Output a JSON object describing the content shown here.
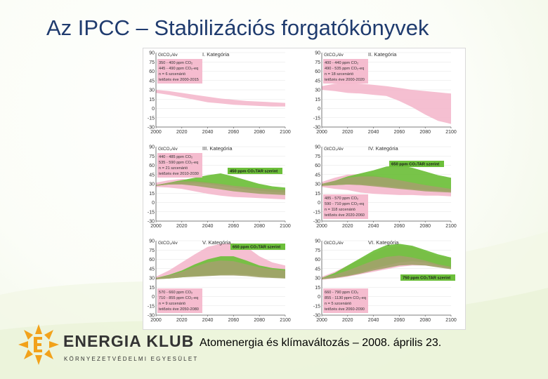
{
  "title": "Az IPCC – Stabilizációs forgatókönyvek",
  "footer": "Atomenergia és klímaváltozás – 2008. április 23.",
  "org": {
    "name": "ENERGIA KLUB",
    "subtitle": "KÖRNYEZETVÉDELMI EGYESÜLET"
  },
  "colors": {
    "title": "#1f3b6e",
    "pink": "#f4b8cc",
    "green": "#6cbf3a",
    "olive": "#a2a36a",
    "logo": "#f2a21b"
  },
  "chart_data": [
    {
      "type": "area",
      "title": "I. Kategória",
      "ylabel": "GtCO₂/év",
      "ylim": [
        -30,
        90
      ],
      "yticks": [
        90,
        75,
        60,
        45,
        30,
        15,
        0,
        -15,
        -30
      ],
      "xticks": [
        2000,
        2020,
        2040,
        2060,
        2080,
        2100
      ],
      "box": [
        "350 - 400 ppm CO₂",
        "445 - 490 ppm CO₂-eq",
        "n = 6 szcenárió",
        "tetőzés éve 2000-2015"
      ],
      "x": [
        2000,
        2010,
        2020,
        2030,
        2040,
        2050,
        2060,
        2070,
        2080,
        2090,
        2100
      ],
      "series": [
        {
          "values_upper": [
            30,
            28,
            25,
            22,
            19,
            16,
            14,
            12,
            11,
            10,
            9
          ],
          "values_lower": [
            25,
            22,
            18,
            14,
            10,
            8,
            6,
            5,
            4,
            3,
            3
          ]
        }
      ]
    },
    {
      "type": "area",
      "title": "II. Kategória",
      "ylabel": "GtCO₂/év",
      "ylim": [
        -30,
        90
      ],
      "yticks": [
        90,
        75,
        60,
        45,
        30,
        15,
        0,
        -15,
        -30
      ],
      "xticks": [
        2000,
        2020,
        2040,
        2060,
        2080,
        2100
      ],
      "box": [
        "400 - 440 ppm CO₂",
        "490 - 535 ppm CO₂-eq",
        "n = 18 szcenárió",
        "tetőzés éve 2000-2020"
      ],
      "x": [
        2000,
        2010,
        2020,
        2030,
        2040,
        2050,
        2060,
        2070,
        2080,
        2090,
        2100
      ],
      "series": [
        {
          "values_upper": [
            36,
            40,
            41,
            40,
            38,
            36,
            33,
            30,
            28,
            26,
            24
          ],
          "values_lower": [
            30,
            28,
            25,
            24,
            22,
            20,
            12,
            2,
            -10,
            -20,
            -25
          ]
        }
      ]
    },
    {
      "type": "area",
      "title": "III. Kategória",
      "ylabel": "GtCO₂/év",
      "ylim": [
        -30,
        90
      ],
      "yticks": [
        90,
        75,
        60,
        45,
        30,
        15,
        0,
        -15,
        -30
      ],
      "xticks": [
        2000,
        2020,
        2040,
        2060,
        2080,
        2100
      ],
      "box": [
        "440 - 485 ppm CO₂",
        "535 - 590 ppm CO₂-eq",
        "n = 21 szcenárió",
        "tetőzés éve 2010-2030"
      ],
      "annotation": "450 ppm CO₂TAR szerint",
      "x": [
        2000,
        2010,
        2020,
        2030,
        2040,
        2050,
        2060,
        2070,
        2080,
        2090,
        2100
      ],
      "series": [
        {
          "values_upper": [
            32,
            36,
            38,
            36,
            33,
            30,
            27,
            25,
            23,
            21,
            20
          ],
          "values_lower": [
            25,
            24,
            22,
            18,
            14,
            11,
            9,
            8,
            7,
            6,
            5
          ]
        },
        {
          "values_upper": [
            28,
            32,
            36,
            40,
            44,
            47,
            42,
            36,
            30,
            26,
            24
          ],
          "values_lower": [
            27,
            29,
            30,
            31,
            30,
            27,
            24,
            21,
            19,
            17,
            16
          ]
        },
        {
          "values_upper": [
            28,
            32,
            34,
            34,
            32,
            30,
            27,
            25,
            23,
            21,
            20
          ],
          "values_lower": [
            27,
            29,
            29,
            27,
            24,
            21,
            18,
            16,
            14,
            13,
            12
          ]
        }
      ]
    },
    {
      "type": "area",
      "title": "IV. Kategória",
      "ylabel": "GtCO₂/év",
      "ylim": [
        -30,
        90
      ],
      "yticks": [
        90,
        75,
        60,
        45,
        30,
        15,
        0,
        -15,
        -30
      ],
      "xticks": [
        2000,
        2020,
        2040,
        2060,
        2080,
        2100
      ],
      "box": [
        "485 - 570 ppm CO₂",
        "590 - 710 ppm CO₂-eq",
        "n = 118 szcenárió",
        "tetőzés éve 2020-2060"
      ],
      "annotation": "650 ppm CO₂TAR szerint",
      "x": [
        2000,
        2010,
        2020,
        2030,
        2040,
        2050,
        2060,
        2070,
        2080,
        2090,
        2100
      ],
      "series": [
        {
          "values_upper": [
            33,
            40,
            45,
            46,
            44,
            40,
            36,
            32,
            28,
            25,
            22
          ],
          "values_lower": [
            25,
            22,
            20,
            16,
            14,
            13,
            12,
            12,
            11,
            11,
            10
          ]
        },
        {
          "values_upper": [
            30,
            35,
            42,
            47,
            52,
            58,
            60,
            56,
            50,
            44,
            40
          ],
          "values_lower": [
            27,
            28,
            29,
            29,
            28,
            26,
            24,
            22,
            20,
            19,
            18
          ]
        },
        {
          "values_upper": [
            30,
            35,
            40,
            42,
            42,
            40,
            36,
            32,
            28,
            25,
            22
          ],
          "values_lower": [
            27,
            28,
            29,
            28,
            26,
            24,
            22,
            20,
            18,
            17,
            16
          ]
        }
      ]
    },
    {
      "type": "area",
      "title": "V. Kategória",
      "ylabel": "GtCO₂/év",
      "ylim": [
        -30,
        90
      ],
      "yticks": [
        90,
        75,
        60,
        45,
        30,
        15,
        0,
        -15,
        -30
      ],
      "xticks": [
        2000,
        2020,
        2040,
        2060,
        2080,
        2100
      ],
      "box": [
        "570 - 660 ppm CO₂",
        "710 - 855 ppm CO₂-eq",
        "n = 9 szcenárió",
        "tetőzés éve 2050-2080"
      ],
      "annotation": "650 ppm CO₂TAR szerint",
      "x": [
        2000,
        2010,
        2020,
        2030,
        2040,
        2050,
        2060,
        2070,
        2080,
        2090,
        2100
      ],
      "series": [
        {
          "values_upper": [
            32,
            42,
            55,
            68,
            80,
            85,
            86,
            80,
            65,
            55,
            50
          ],
          "values_lower": [
            27,
            30,
            33,
            34,
            36,
            37,
            38,
            36,
            34,
            32,
            30
          ]
        },
        {
          "values_upper": [
            30,
            35,
            42,
            52,
            60,
            65,
            65,
            58,
            50,
            46,
            44
          ],
          "values_lower": [
            28,
            29,
            31,
            33,
            34,
            35,
            36,
            35,
            33,
            31,
            30
          ]
        },
        {
          "values_upper": [
            30,
            34,
            40,
            48,
            55,
            58,
            57,
            52,
            47,
            44,
            42
          ],
          "values_lower": [
            28,
            29,
            31,
            32,
            33,
            34,
            34,
            33,
            31,
            30,
            29
          ]
        }
      ]
    },
    {
      "type": "area",
      "title": "VI. Kategória",
      "ylabel": "GtCO₂/év",
      "ylim": [
        -30,
        90
      ],
      "yticks": [
        90,
        75,
        60,
        45,
        30,
        15,
        0,
        -15,
        -30
      ],
      "xticks": [
        2000,
        2020,
        2040,
        2060,
        2080,
        2100
      ],
      "box": [
        "660 - 790 ppm CO₂",
        "855 - 1130 ppm CO₂-eq",
        "n = 5 szcenárió",
        "tetőzés éve 2060-2090"
      ],
      "annotation": "750 ppm CO₂TAR szerint",
      "x": [
        2000,
        2010,
        2020,
        2030,
        2040,
        2050,
        2060,
        2070,
        2080,
        2090,
        2100
      ],
      "series": [
        {
          "values_upper": [
            32,
            40,
            50,
            60,
            70,
            78,
            82,
            80,
            72,
            65,
            62
          ],
          "values_lower": [
            27,
            29,
            32,
            36,
            40,
            44,
            48,
            50,
            50,
            48,
            46
          ]
        },
        {
          "values_upper": [
            30,
            38,
            50,
            62,
            74,
            83,
            85,
            82,
            75,
            68,
            63
          ],
          "values_lower": [
            28,
            30,
            34,
            39,
            45,
            50,
            55,
            57,
            55,
            50,
            45
          ]
        },
        {
          "values_upper": [
            30,
            35,
            42,
            50,
            58,
            64,
            66,
            63,
            58,
            52,
            48
          ],
          "values_lower": [
            28,
            30,
            33,
            37,
            42,
            46,
            50,
            51,
            50,
            47,
            44
          ]
        }
      ]
    }
  ]
}
